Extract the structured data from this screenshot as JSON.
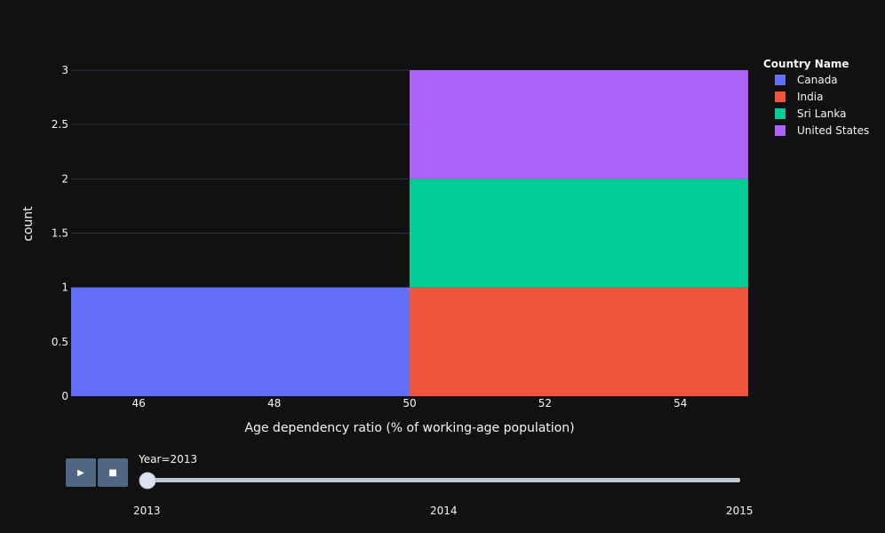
{
  "chart_data": {
    "type": "bar",
    "mode": "stacked-histogram",
    "xlabel": "Age dependency ratio (% of working-age population)",
    "ylabel": "count",
    "xlim": [
      45,
      55
    ],
    "ylim": [
      0,
      3
    ],
    "x_ticks": [
      "46",
      "48",
      "50",
      "52",
      "54"
    ],
    "y_ticks": [
      "0",
      "0.5",
      "1",
      "1.5",
      "2",
      "2.5",
      "3"
    ],
    "grid": true,
    "legend_title": "Country Name",
    "legend_position": "right",
    "series": [
      {
        "name": "Canada",
        "color": "#636efa",
        "bins": [
          {
            "x0": 45,
            "x1": 50,
            "count": 1
          }
        ]
      },
      {
        "name": "India",
        "color": "#ef553b",
        "bins": [
          {
            "x0": 50,
            "x1": 55,
            "count": 1
          }
        ]
      },
      {
        "name": "Sri Lanka",
        "color": "#00cc96",
        "bins": [
          {
            "x0": 50,
            "x1": 55,
            "count": 1
          }
        ]
      },
      {
        "name": "United States",
        "color": "#ab63fa",
        "bins": [
          {
            "x0": 50,
            "x1": 55,
            "count": 1
          }
        ]
      }
    ]
  },
  "controls": {
    "play_icon": "play-icon",
    "stop_icon": "stop-icon",
    "play_glyph": "▶",
    "stop_glyph": "■",
    "slider_current": "Year=2013",
    "slider_steps": [
      "2013",
      "2014",
      "2015"
    ],
    "slider_value": 0
  }
}
